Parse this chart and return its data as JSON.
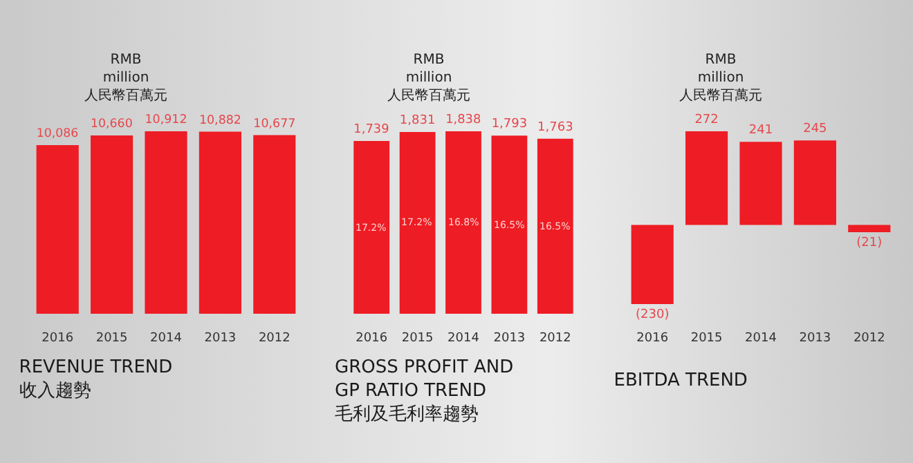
{
  "chart_data": [
    {
      "type": "bar",
      "title": "REVENUE TREND\n收入趨勢",
      "ylabel": "RMB\nmillion\n人民幣百萬元",
      "categories": [
        "2016",
        "2015",
        "2014",
        "2013",
        "2012"
      ],
      "values": [
        10086,
        10660,
        10912,
        10882,
        10677
      ],
      "color": "#ee1c24",
      "value_labels": [
        "10,086",
        "10,660",
        "10,912",
        "10,882",
        "10,677"
      ]
    },
    {
      "type": "bar",
      "title": "GROSS PROFIT AND\nGP RATIO TREND\n毛利及毛利率趨勢",
      "ylabel": "RMB\nmillion\n人民幣百萬元",
      "categories": [
        "2016",
        "2015",
        "2014",
        "2013",
        "2012"
      ],
      "values": [
        1739,
        1831,
        1838,
        1793,
        1763
      ],
      "color": "#ee1c24",
      "value_labels": [
        "1,739",
        "1,831",
        "1,838",
        "1,793",
        "1,763"
      ],
      "annotations": [
        "17.2%",
        "17.2%",
        "16.8%",
        "16.5%",
        "16.5%"
      ]
    },
    {
      "type": "bar",
      "title": "EBITDA TREND",
      "ylabel": "RMB\nmillion\n人民幣百萬元",
      "categories": [
        "2016",
        "2015",
        "2014",
        "2013",
        "2012"
      ],
      "values": [
        -230,
        272,
        241,
        245,
        -21
      ],
      "color": "#ee1c24",
      "value_labels": [
        "(230)",
        "272",
        "241",
        "245",
        "(21)"
      ]
    }
  ]
}
